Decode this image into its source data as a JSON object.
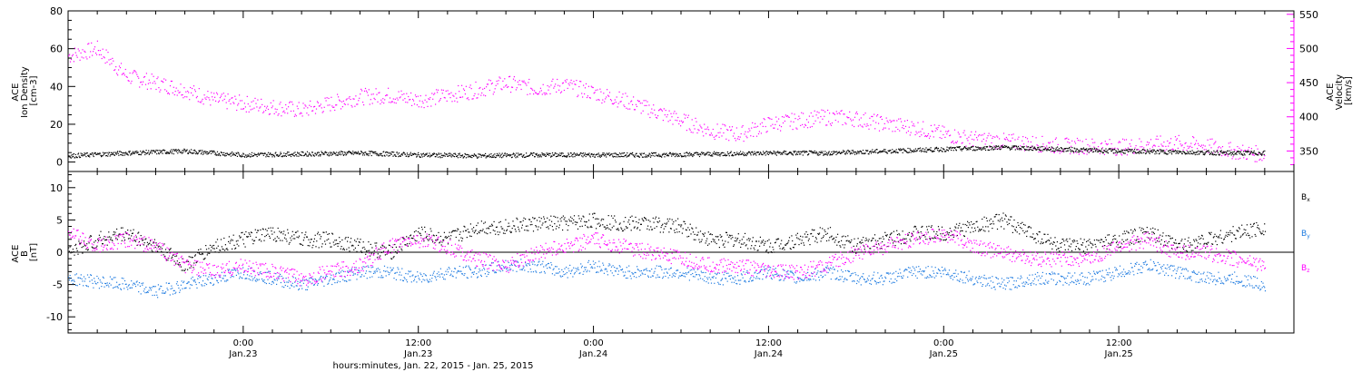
{
  "colors": {
    "black": "#000000",
    "magenta": "#ff00ff",
    "blue": "#1e7be0"
  },
  "chart_data": [
    {
      "type": "scatter",
      "panel": "plasma",
      "ylabel_left": [
        "ACE",
        "Ion Density",
        "[cm-3]"
      ],
      "ylabel_right": [
        "ACE",
        "Velocity",
        "[km/s]"
      ],
      "ylim_left": [
        -5,
        80
      ],
      "yticks_left": [
        0,
        20,
        40,
        60,
        80
      ],
      "ylim_right": [
        320,
        555
      ],
      "yticks_right": [
        350,
        400,
        450,
        500,
        550
      ],
      "x_unit": "hours since 2015-01-22 00:00",
      "xlim": [
        12,
        96
      ],
      "series": [
        {
          "axis": "left",
          "color": "#000000",
          "x": [
            12,
            16,
            20,
            24,
            28,
            32,
            36,
            40,
            44,
            48,
            52,
            56,
            60,
            64,
            68,
            72,
            76,
            80,
            84,
            88,
            92,
            94
          ],
          "y": [
            3.5,
            5,
            6,
            4,
            4.5,
            5,
            4,
            3.5,
            4,
            4,
            4,
            4.5,
            5,
            5,
            6,
            7,
            8,
            7,
            6,
            5.5,
            5,
            5
          ]
        },
        {
          "axis": "right",
          "color": "#ff00ff",
          "x": [
            12,
            14,
            16,
            18,
            20,
            22,
            24,
            26,
            28,
            30,
            32,
            34,
            36,
            38,
            40,
            42,
            44,
            46,
            48,
            50,
            52,
            54,
            56,
            58,
            60,
            62,
            64,
            66,
            68,
            70,
            72,
            74,
            76,
            78,
            80,
            82,
            84,
            86,
            88,
            90,
            92,
            94
          ],
          "y": [
            490,
            500,
            460,
            450,
            440,
            425,
            420,
            415,
            410,
            420,
            430,
            432,
            425,
            432,
            440,
            450,
            442,
            447,
            436,
            425,
            410,
            395,
            380,
            375,
            390,
            395,
            400,
            398,
            390,
            385,
            375,
            368,
            365,
            362,
            358,
            358,
            356,
            360,
            362,
            358,
            350,
            345
          ]
        }
      ]
    },
    {
      "type": "scatter",
      "panel": "magnetic-field",
      "ylabel_left": [
        "ACE",
        "B",
        "[nT]"
      ],
      "ylim": [
        -12.5,
        12.5
      ],
      "yticks": [
        -10,
        -5,
        0,
        5,
        10
      ],
      "zero_line": true,
      "x_unit": "hours since 2015-01-22 00:00",
      "xlim": [
        12,
        96
      ],
      "legend": [
        {
          "base": "B",
          "sub": "x",
          "color": "#000000"
        },
        {
          "base": "B",
          "sub": "y",
          "color": "#1e7be0"
        },
        {
          "base": "B",
          "sub": "z",
          "color": "#ff00ff"
        }
      ],
      "series": [
        {
          "name": "Bx",
          "color": "#000000",
          "x": [
            12,
            14,
            16,
            18,
            20,
            22,
            24,
            26,
            28,
            30,
            32,
            34,
            36,
            38,
            40,
            42,
            44,
            46,
            48,
            50,
            52,
            54,
            56,
            58,
            60,
            62,
            64,
            66,
            68,
            70,
            72,
            74,
            76,
            78,
            80,
            82,
            84,
            86,
            88,
            90,
            92,
            94
          ],
          "y": [
            0,
            2,
            3,
            1,
            -2,
            1,
            2,
            3,
            2,
            2,
            1,
            0,
            3,
            2,
            4,
            4,
            4.5,
            4.5,
            5,
            4.5,
            4.5,
            4,
            2,
            2,
            1,
            2,
            3,
            1,
            2,
            3,
            3,
            4,
            5,
            3,
            1,
            1,
            2,
            3,
            1,
            2,
            3,
            4
          ]
        },
        {
          "name": "By",
          "color": "#1e7be0",
          "x": [
            12,
            14,
            16,
            18,
            20,
            22,
            24,
            26,
            28,
            30,
            32,
            34,
            36,
            38,
            40,
            42,
            44,
            46,
            48,
            50,
            52,
            54,
            56,
            58,
            60,
            62,
            64,
            66,
            68,
            70,
            72,
            74,
            76,
            78,
            80,
            82,
            84,
            86,
            88,
            90,
            92,
            94
          ],
          "y": [
            -4,
            -4.5,
            -5,
            -6,
            -5,
            -4,
            -3,
            -4,
            -5,
            -4,
            -3,
            -3,
            -4,
            -3,
            -3,
            -2,
            -2,
            -3,
            -2,
            -3,
            -3,
            -3,
            -4,
            -4,
            -3,
            -4,
            -3,
            -4,
            -4,
            -3,
            -3,
            -4,
            -5,
            -4,
            -4,
            -4,
            -3,
            -2,
            -3,
            -4,
            -4,
            -5
          ]
        },
        {
          "name": "Bz",
          "color": "#ff00ff",
          "x": [
            12,
            14,
            16,
            18,
            20,
            22,
            24,
            26,
            28,
            30,
            32,
            34,
            36,
            38,
            40,
            42,
            44,
            46,
            48,
            50,
            52,
            54,
            56,
            58,
            60,
            62,
            64,
            66,
            68,
            70,
            72,
            74,
            76,
            78,
            80,
            82,
            84,
            86,
            88,
            90,
            92,
            94
          ],
          "y": [
            3,
            1,
            2,
            1,
            -2,
            -3,
            -2,
            -3,
            -4,
            -3,
            -2,
            1,
            2,
            1,
            -1,
            -2,
            0,
            1,
            2,
            1,
            0,
            -1,
            -2,
            -2,
            -3,
            -3,
            -2,
            0,
            1,
            2,
            3,
            1,
            0,
            -1,
            -1,
            -1,
            1,
            2,
            0,
            0,
            -1,
            -2
          ]
        }
      ]
    }
  ],
  "x_axis": {
    "ticks": [
      {
        "h": 24,
        "time": "0:00",
        "date": "Jan.23"
      },
      {
        "h": 36,
        "time": "12:00",
        "date": "Jan.23"
      },
      {
        "h": 48,
        "time": "0:00",
        "date": "Jan.24"
      },
      {
        "h": 60,
        "time": "12:00",
        "date": "Jan.24"
      },
      {
        "h": 72,
        "time": "0:00",
        "date": "Jan.25"
      },
      {
        "h": 84,
        "time": "12:00",
        "date": "Jan.25"
      }
    ],
    "title": "hours:minutes, Jan. 22, 2015 - Jan. 25, 2015"
  }
}
